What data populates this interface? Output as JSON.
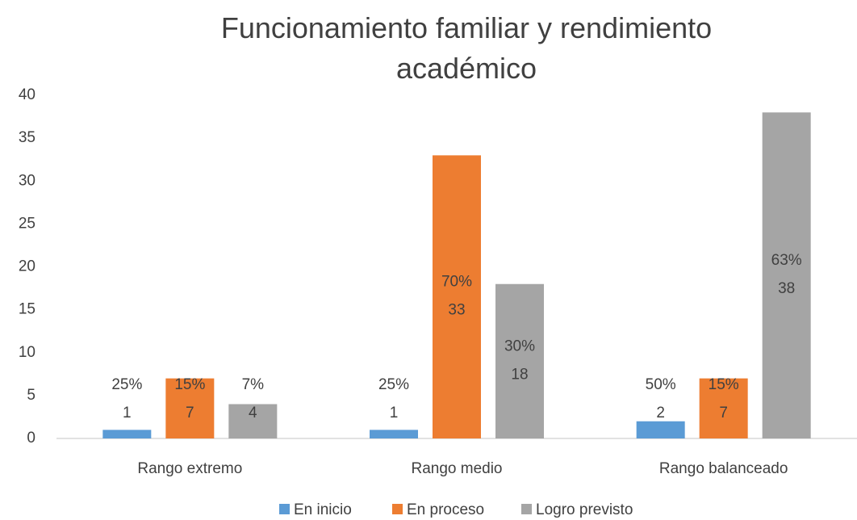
{
  "chart_data": {
    "type": "bar",
    "title": "Funcionamiento familiar y rendimiento académico",
    "categories": [
      "Rango extremo",
      "Rango medio",
      "Rango balanceado"
    ],
    "series": [
      {
        "name": "En inicio",
        "color": "#5b9bd5",
        "values": [
          1,
          1,
          2
        ],
        "percent_labels": [
          "25%",
          "25%",
          "50%"
        ]
      },
      {
        "name": "En proceso",
        "color": "#ed7d31",
        "values": [
          7,
          33,
          7
        ],
        "percent_labels": [
          "15%",
          "70%",
          "15%"
        ]
      },
      {
        "name": "Logro previsto",
        "color": "#a5a5a5",
        "values": [
          4,
          18,
          38
        ],
        "percent_labels": [
          "7%",
          "30%",
          "63%"
        ]
      }
    ],
    "ylim": [
      0,
      40
    ],
    "yticks": [
      0,
      5,
      10,
      15,
      20,
      25,
      30,
      35,
      40
    ],
    "grid": false,
    "legend": "bottom"
  }
}
